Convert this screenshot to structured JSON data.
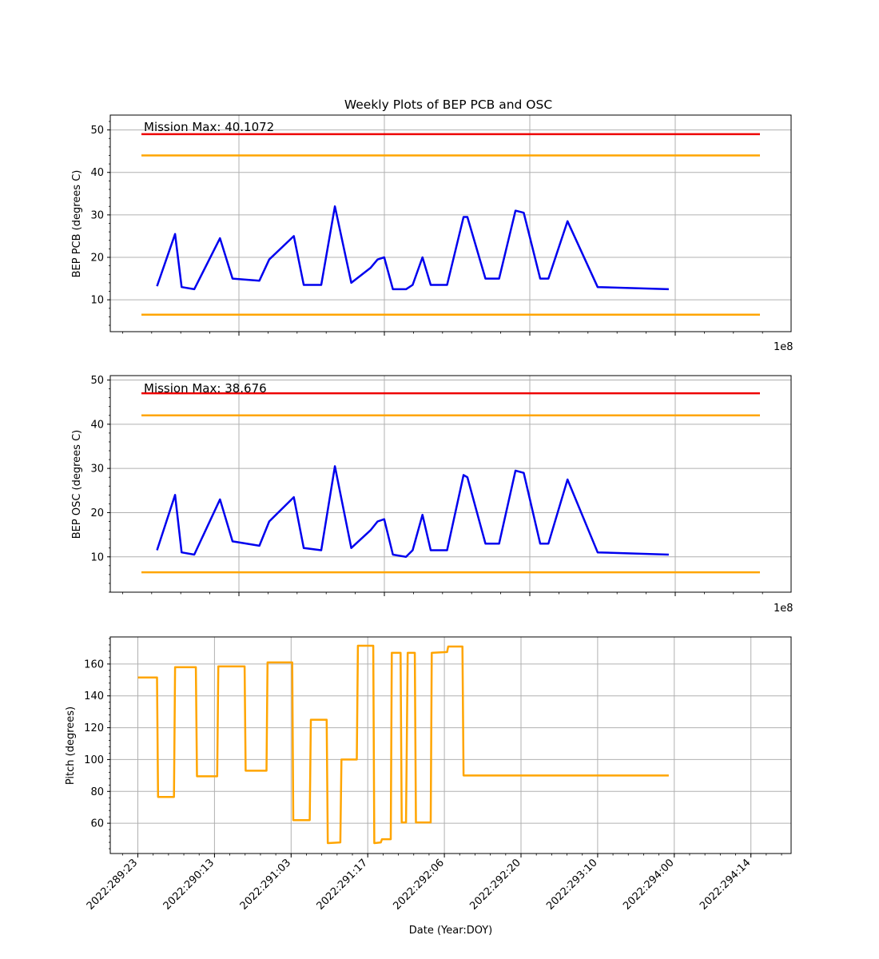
{
  "figure": {
    "title": "Weekly Plots of BEP PCB and OSC",
    "xlabel": "Date (Year:DOY)",
    "x_ticks": [
      "2022:289:23",
      "2022:290:13",
      "2022:291:03",
      "2022:291:17",
      "2022:292:06",
      "2022:292:20",
      "2022:293:10",
      "2022:294:00",
      "2022:294:14"
    ]
  },
  "colors": {
    "data": "#0000ee",
    "red_limit": "#ee0000",
    "yellow_limit": "#ffa500",
    "pitch": "#ffa500",
    "grid": "#b0b0b0"
  },
  "chart_data": [
    {
      "type": "line",
      "title": "Weekly Plots of BEP PCB and OSC",
      "xlabel": "",
      "ylabel": "BEP PCB (degrees C)",
      "ylim": [
        2.5,
        53.5
      ],
      "y_ticks": [
        10,
        20,
        30,
        40,
        50
      ],
      "offset_text": "1e8",
      "annotation": "Mission Max: 40.1072",
      "limits": {
        "red_high": 49,
        "yellow_high": 44,
        "yellow_low": 6.5
      },
      "series": [
        {
          "values_x_hours": [
            3.5,
            6.8,
            8.0,
            10.3,
            15.0,
            17.3,
            22.2,
            24.0,
            28.5,
            30.3,
            33.5,
            36.0,
            39.0,
            42.5,
            43.8,
            45.0,
            46.6,
            49.0,
            50.2,
            52.0,
            53.5,
            56.5,
            59.5,
            60.2,
            63.5,
            66.0,
            69.0,
            70.5,
            73.5,
            75.0,
            78.5,
            84.0,
            97.0
          ],
          "values": [
            13.2,
            25.5,
            13.0,
            12.5,
            24.5,
            15.0,
            14.5,
            19.5,
            25.0,
            13.5,
            13.5,
            32.0,
            14.0,
            17.5,
            19.5,
            20.0,
            12.5,
            12.5,
            13.5,
            20.0,
            13.5,
            13.5,
            29.5,
            29.5,
            15.0,
            15.0,
            31.0,
            30.5,
            15.0,
            15.0,
            28.5,
            13.0,
            12.5
          ]
        }
      ]
    },
    {
      "type": "line",
      "xlabel": "",
      "ylabel": "BEP OSC (degrees C)",
      "ylim": [
        2.0,
        51.0
      ],
      "y_ticks": [
        10,
        20,
        30,
        40,
        50
      ],
      "offset_text": "1e8",
      "annotation": "Mission Max: 38.676",
      "limits": {
        "red_high": 47,
        "yellow_high": 42,
        "yellow_low": 6.5
      },
      "series": [
        {
          "values_x_hours": [
            3.5,
            6.8,
            8.0,
            10.3,
            15.0,
            17.3,
            22.2,
            24.0,
            28.5,
            30.3,
            33.5,
            36.0,
            39.0,
            42.5,
            43.8,
            45.0,
            46.6,
            49.0,
            50.2,
            52.0,
            53.5,
            56.5,
            59.5,
            60.2,
            63.5,
            66.0,
            69.0,
            70.5,
            73.5,
            75.0,
            78.5,
            84.0,
            97.0
          ],
          "values": [
            11.5,
            24.0,
            11.0,
            10.5,
            23.0,
            13.5,
            12.5,
            18.0,
            23.5,
            12.0,
            11.5,
            30.5,
            12.0,
            16.0,
            18.0,
            18.5,
            10.5,
            10.0,
            11.5,
            19.5,
            11.5,
            11.5,
            28.5,
            28.0,
            13.0,
            13.0,
            29.5,
            29.0,
            13.0,
            13.0,
            27.5,
            11.0,
            10.5
          ]
        }
      ]
    },
    {
      "type": "line",
      "xlabel": "Date (Year:DOY)",
      "ylabel": "Pitch (degrees)",
      "ylim": [
        41,
        177
      ],
      "y_ticks": [
        60,
        80,
        100,
        120,
        140,
        160
      ],
      "series": [
        {
          "values_x_hours": [
            0,
            3.5,
            3.7,
            6.6,
            6.8,
            10.6,
            10.8,
            14.5,
            14.7,
            19.5,
            19.7,
            23.5,
            23.7,
            28.2,
            28.4,
            31.4,
            31.6,
            34.5,
            34.7,
            37.0,
            37.2,
            40.0,
            40.2,
            43.0,
            43.2,
            44.4,
            44.6,
            46.2,
            46.4,
            48.0,
            48.2,
            49.0,
            49.3,
            50.6,
            50.8,
            53.5,
            53.7,
            56.5,
            56.7,
            59.3,
            59.5,
            62.2,
            62.4,
            65.2,
            65.4,
            68.4,
            68.6,
            70.3,
            70.6,
            71.4,
            71.7,
            97.0
          ],
          "values": [
            151.5,
            151.5,
            76.5,
            76.5,
            158.0,
            158.0,
            89.5,
            89.5,
            158.5,
            158.5,
            93.0,
            93.0,
            161.0,
            161.0,
            62.0,
            62.0,
            125.0,
            125.0,
            47.5,
            48.0,
            100.0,
            100.0,
            171.5,
            171.5,
            47.5,
            48.0,
            50.0,
            50.0,
            167.0,
            167.0,
            60.5,
            60.5,
            167.0,
            167.0,
            60.5,
            60.5,
            167.0,
            167.5,
            171.0,
            171.0,
            90.0,
            90.0,
            90.0,
            90.0,
            90.0,
            90.0,
            90.0,
            90.0,
            90.0,
            90.0,
            90.0,
            90.0
          ]
        }
      ]
    }
  ]
}
